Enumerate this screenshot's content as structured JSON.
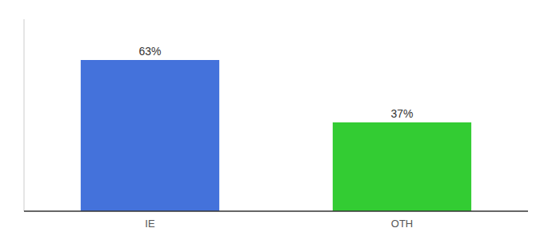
{
  "chart_data": {
    "type": "bar",
    "categories": [
      "IE",
      "OTH"
    ],
    "values": [
      63,
      37
    ],
    "value_labels": [
      "63%",
      "37%"
    ],
    "colors": [
      "#4472db",
      "#33cc33"
    ],
    "ylim": [
      0,
      80
    ],
    "data_labels": true,
    "tick_labels": "x",
    "grid": false
  }
}
